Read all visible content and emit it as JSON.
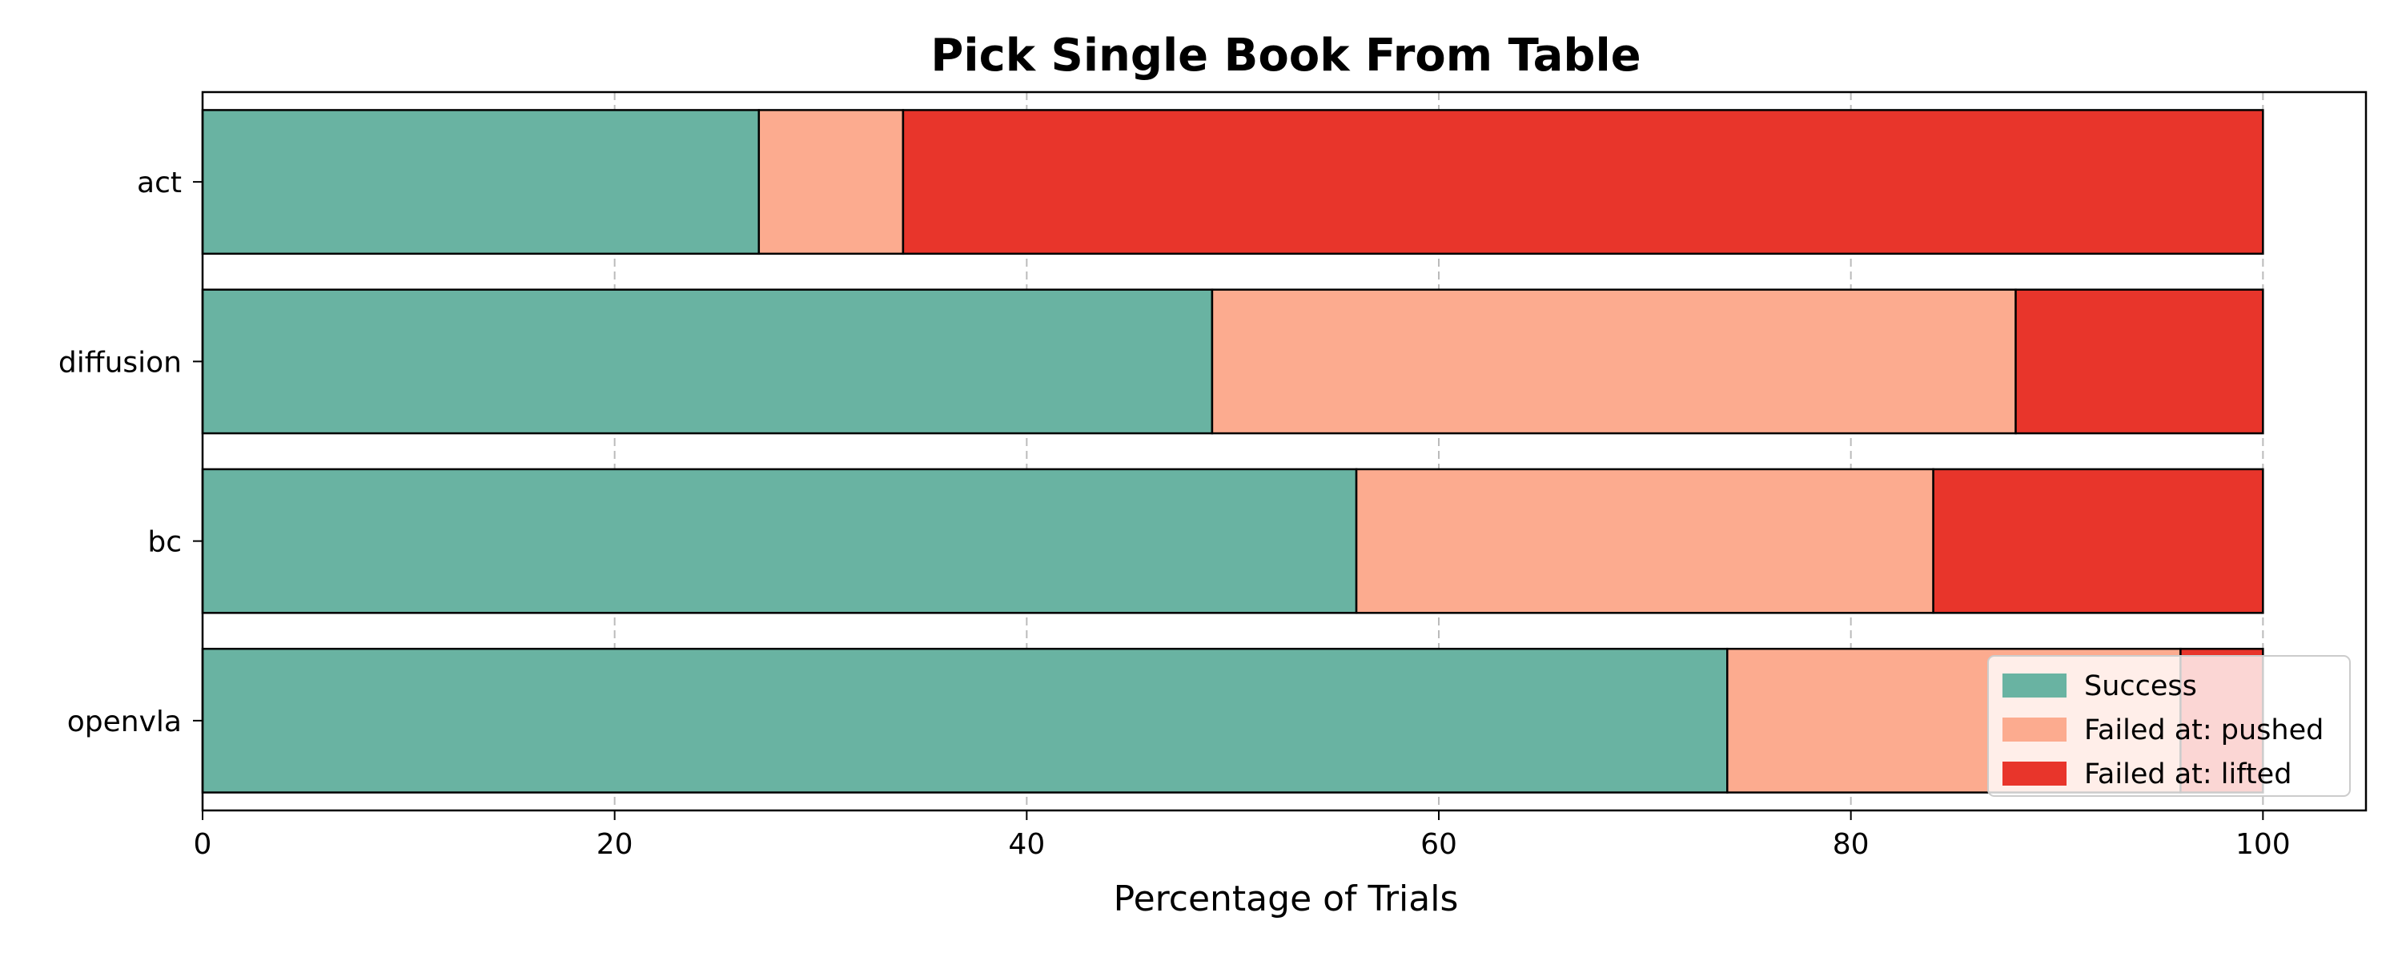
{
  "chart_data": {
    "type": "bar",
    "orientation": "horizontal",
    "stacked": true,
    "title": "Pick Single Book From Table",
    "xlabel": "Percentage of Trials",
    "ylabel": "",
    "xlim": [
      0,
      105
    ],
    "xticks": [
      0,
      20,
      40,
      60,
      80,
      100
    ],
    "grid": "x",
    "legend_position": "lower-right",
    "categories": [
      "act",
      "diffusion",
      "bc",
      "openvla"
    ],
    "series": [
      {
        "name": "Success",
        "color": "#69b3a2",
        "values": [
          27,
          49,
          56,
          74
        ]
      },
      {
        "name": "Failed at: pushed",
        "color": "#fcab8f",
        "values": [
          7,
          39,
          28,
          22
        ]
      },
      {
        "name": "Failed at: lifted",
        "color": "#e8352b",
        "values": [
          66,
          12,
          16,
          4
        ]
      }
    ]
  }
}
